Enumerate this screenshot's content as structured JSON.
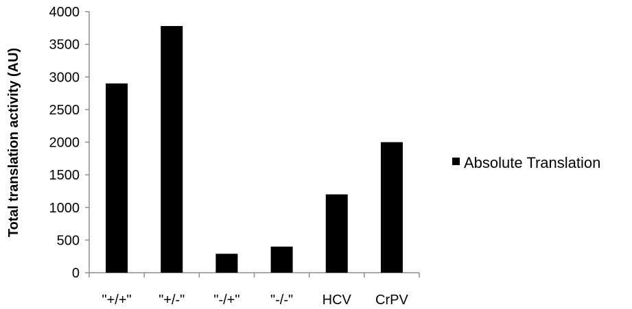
{
  "chart_data": {
    "type": "bar",
    "title": "",
    "xlabel": "",
    "ylabel": "Total translation activity (AU)",
    "categories": [
      "\"+/+\"",
      "\"+/-\"",
      "\"-/+\"",
      "\"-/-\"",
      "HCV",
      "CrPV"
    ],
    "series": [
      {
        "name": "Absolute Translation",
        "values": [
          2900,
          3780,
          290,
          400,
          1200,
          2000
        ]
      }
    ],
    "ylim": [
      0,
      4000
    ],
    "yticks": [
      0,
      500,
      1000,
      1500,
      2000,
      2500,
      3000,
      3500,
      4000
    ],
    "grid": false,
    "legend_position": "right",
    "bar_color": "#000000",
    "axis_color": "#8c8c8c"
  }
}
